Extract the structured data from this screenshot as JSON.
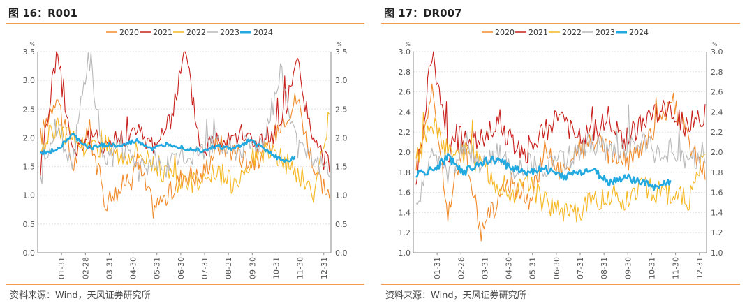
{
  "charts": {
    "left": {
      "title": "图 16：R001",
      "source": "资料来源：Wind，天风证券研究所"
    },
    "right": {
      "title": "图 17：DR007",
      "source": "资料来源：Wind，天风证券研究所"
    }
  },
  "colors": {
    "2020": "#f08a2a",
    "2021": "#c8201c",
    "2022": "#f5b823",
    "2023": "#b9b9b9",
    "2024": "#21a9e0",
    "rule": "#f39a4b"
  },
  "chart_data": [
    {
      "type": "line",
      "title": "图 16：R001",
      "ylabel_left": "%",
      "ylabel_right": "%",
      "ylim": [
        0,
        3.5
      ],
      "yticks": [
        "0.0",
        "0.5",
        "1.0",
        "1.5",
        "2.0",
        "2.5",
        "3.0",
        "3.5"
      ],
      "xticks": [
        "01-31",
        "02-28",
        "03-31",
        "04-30",
        "05-31",
        "06-30",
        "07-31",
        "08-31",
        "09-30",
        "10-31",
        "11-30",
        "12-31"
      ],
      "legend_position": "top-center",
      "series": [
        {
          "name": "2020",
          "color": "#f08a2a",
          "values": [
            2.0,
            2.8,
            1.5,
            2.2,
            0.9,
            1.1,
            1.6,
            0.8,
            1.0,
            1.4,
            1.3,
            1.9,
            1.8,
            1.6,
            1.7,
            2.3,
            2.7,
            1.5,
            1.0
          ]
        },
        {
          "name": "2021",
          "color": "#c8201c",
          "values": [
            1.5,
            3.5,
            1.8,
            2.0,
            1.9,
            2.0,
            2.1,
            1.9,
            2.2,
            3.5,
            1.8,
            2.0,
            2.1,
            2.0,
            1.9,
            2.2,
            3.3,
            1.9,
            1.5
          ]
        },
        {
          "name": "2022",
          "color": "#f5b823",
          "values": [
            1.8,
            2.2,
            2.0,
            1.8,
            1.9,
            1.7,
            1.8,
            1.6,
            1.3,
            1.2,
            1.3,
            1.4,
            1.2,
            1.6,
            1.8,
            1.6,
            1.4,
            1.0,
            2.4
          ]
        },
        {
          "name": "2023",
          "color": "#b9b9b9",
          "values": [
            1.3,
            2.2,
            1.6,
            3.5,
            1.5,
            1.9,
            1.4,
            1.6,
            1.5,
            1.7,
            1.8,
            1.9,
            1.8,
            1.9,
            2.0,
            3.2,
            1.8,
            1.6,
            1.5
          ]
        },
        {
          "name": "2024",
          "color": "#21a9e0",
          "values": [
            1.72,
            1.8,
            2.05,
            1.82,
            1.88,
            1.85,
            1.95,
            1.8,
            1.9,
            1.82,
            1.78,
            1.85,
            1.8,
            1.95,
            1.8,
            1.6,
            1.65,
            1.6,
            1.68
          ]
        }
      ]
    },
    {
      "type": "line",
      "title": "图 17：DR007",
      "ylabel_left": "%",
      "ylabel_right": "%",
      "ylim": [
        1.0,
        3.0
      ],
      "yticks": [
        "1.0",
        "1.2",
        "1.4",
        "1.6",
        "1.8",
        "2.0",
        "2.2",
        "2.4",
        "2.6",
        "2.8",
        "3.0"
      ],
      "xticks": [
        "01-31",
        "02-28",
        "03-31",
        "04-30",
        "05-31",
        "06-30",
        "07-31",
        "08-31",
        "09-30",
        "10-31",
        "11-30",
        "12-31"
      ],
      "legend_position": "top-center",
      "series": [
        {
          "name": "2020",
          "color": "#f08a2a",
          "values": [
            1.9,
            2.6,
            1.4,
            2.1,
            1.2,
            1.5,
            1.7,
            1.5,
            2.0,
            1.8,
            2.0,
            2.1,
            2.0,
            1.9,
            2.0,
            2.3,
            2.5,
            2.1,
            1.8
          ]
        },
        {
          "name": "2021",
          "color": "#c8201c",
          "values": [
            1.7,
            3.0,
            2.0,
            2.2,
            2.1,
            2.3,
            2.1,
            2.0,
            2.2,
            2.4,
            2.1,
            2.2,
            2.3,
            2.1,
            2.3,
            2.4,
            2.4,
            2.2,
            2.4
          ]
        },
        {
          "name": "2022",
          "color": "#f5b823",
          "values": [
            1.9,
            2.3,
            2.0,
            2.0,
            1.9,
            1.7,
            1.6,
            1.7,
            1.5,
            1.4,
            1.4,
            1.5,
            1.6,
            1.5,
            1.7,
            1.6,
            1.6,
            1.5,
            2.0
          ]
        },
        {
          "name": "2023",
          "color": "#b9b9b9",
          "values": [
            1.4,
            2.0,
            1.8,
            2.1,
            1.9,
            2.0,
            1.8,
            1.9,
            1.8,
            1.9,
            2.0,
            2.1,
            2.0,
            2.0,
            2.1,
            2.0,
            1.9,
            1.9,
            2.0
          ]
        },
        {
          "name": "2024",
          "color": "#21a9e0",
          "values": [
            1.78,
            1.82,
            1.95,
            1.8,
            1.9,
            1.92,
            1.85,
            1.8,
            1.85,
            1.75,
            1.8,
            1.82,
            1.7,
            1.75,
            1.7,
            1.65,
            1.72,
            1.68,
            1.7
          ]
        }
      ]
    }
  ]
}
